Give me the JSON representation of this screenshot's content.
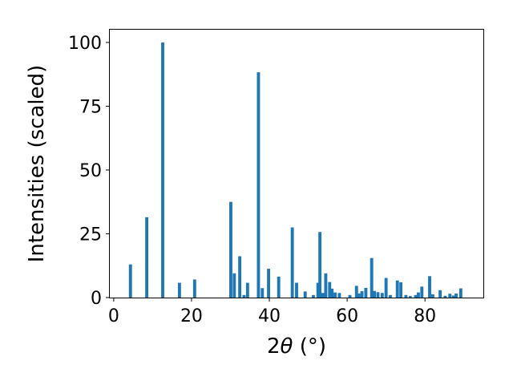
{
  "chart_data": {
    "type": "bar",
    "xlabel_prefix": "2",
    "xlabel_symbol": "θ",
    "xlabel_suffix": " (°)",
    "ylabel": "Intensities (scaled)",
    "xlim": [
      -1,
      95
    ],
    "ylim": [
      0,
      105
    ],
    "xticks": [
      0,
      20,
      40,
      60,
      80
    ],
    "yticks": [
      0,
      25,
      50,
      75,
      100
    ],
    "bar_color": "#1f77b4",
    "grid": false,
    "x": [
      4.3,
      8.5,
      12.6,
      16.9,
      20.8,
      30.1,
      31.0,
      32.4,
      33.5,
      34.4,
      37.2,
      38.2,
      39.8,
      42.4,
      45.9,
      47.0,
      49.2,
      51.3,
      52.5,
      53.0,
      53.7,
      54.5,
      55.5,
      56.1,
      56.9,
      58.0,
      60.7,
      62.4,
      63.0,
      63.8,
      64.8,
      66.3,
      67.0,
      67.9,
      69.0,
      70.0,
      71.1,
      72.9,
      73.8,
      75.1,
      76.2,
      77.6,
      78.3,
      79.2,
      81.2,
      82.0,
      83.9,
      85.2,
      86.4,
      87.3,
      88.0,
      89.2
    ],
    "values": [
      13,
      31.5,
      100,
      5.8,
      7.1,
      37.5,
      9.5,
      16.2,
      1,
      5.8,
      88.3,
      3.7,
      11.3,
      8.2,
      27.5,
      5.8,
      2.4,
      1,
      5.8,
      25.7,
      1.8,
      9.5,
      6.1,
      3.5,
      2,
      1.8,
      1,
      4.6,
      1.6,
      2.5,
      3.8,
      15.5,
      2.6,
      2.1,
      1.8,
      7.7,
      1,
      6.7,
      6,
      1,
      0.6,
      1,
      2,
      4.3,
      8.4,
      1.3,
      2.9,
      0.7,
      1.5,
      0.8,
      1.6,
      3.6
    ]
  }
}
